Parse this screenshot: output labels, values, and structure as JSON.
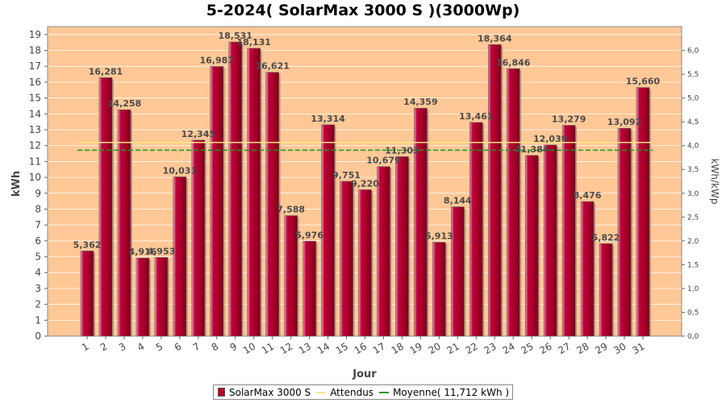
{
  "chart_data": {
    "type": "bar",
    "title": "5-2024( SolarMax 3000 S )(3000Wp)",
    "xlabel": "Jour",
    "ylabel": "kWh",
    "ylabel_right": "kWh/kWp",
    "categories": [
      "1",
      "2",
      "3",
      "4",
      "5",
      "6",
      "7",
      "8",
      "9",
      "10",
      "11",
      "12",
      "13",
      "14",
      "15",
      "16",
      "17",
      "18",
      "19",
      "20",
      "21",
      "22",
      "23",
      "24",
      "25",
      "26",
      "27",
      "28",
      "29",
      "30",
      "31"
    ],
    "series": [
      {
        "name": "SolarMax 3000 S",
        "values": [
          5.362,
          16.281,
          14.258,
          4.916,
          4.953,
          10.031,
          12.345,
          16.987,
          18.531,
          18.131,
          16.621,
          7.588,
          5.976,
          13.314,
          9.751,
          9.22,
          10.679,
          11.303,
          14.359,
          5.913,
          8.144,
          13.461,
          18.364,
          16.846,
          11.384,
          12.039,
          13.279,
          8.476,
          5.822,
          13.092,
          15.66
        ],
        "labels": [
          "5,362",
          "16,281",
          "14,258",
          "4,916",
          "4,953",
          "10,031",
          "12,345",
          "16,987",
          "18,531",
          "18,131",
          "16,621",
          "7,588",
          "5,976",
          "13,314",
          "9,751",
          "9,220",
          "10,679",
          "11,303",
          "14,359",
          "5,913",
          "8,144",
          "13,461",
          "18,364",
          "16,846",
          "11,384",
          "12,039",
          "13,279",
          "8,476",
          "5,822",
          "13,092",
          "15,660"
        ],
        "color": "#b5002a"
      }
    ],
    "lines": [
      {
        "name": "Attendus",
        "value": 12.2,
        "color": "#ffe680",
        "style": "solid"
      },
      {
        "name": "Moyenne( 11,712 kWh )",
        "value": 11.712,
        "color": "#1a9a1a",
        "style": "dashed"
      }
    ],
    "ylim": [
      0,
      19.5
    ],
    "yticks": [
      "0",
      "1",
      "2",
      "3",
      "4",
      "5",
      "6",
      "7",
      "8",
      "9",
      "10",
      "11",
      "12",
      "13",
      "14",
      "15",
      "16",
      "17",
      "18",
      "19"
    ],
    "y2lim": [
      0,
      6.5
    ],
    "y2ticks": [
      "0,0",
      "0,5",
      "1,0",
      "1,5",
      "2,0",
      "2,5",
      "3,0",
      "3,5",
      "4,0",
      "4,5",
      "5,0",
      "5,5",
      "6,0"
    ],
    "plot_background": "#ffc896",
    "grid": true,
    "legend_position": "bottom"
  }
}
